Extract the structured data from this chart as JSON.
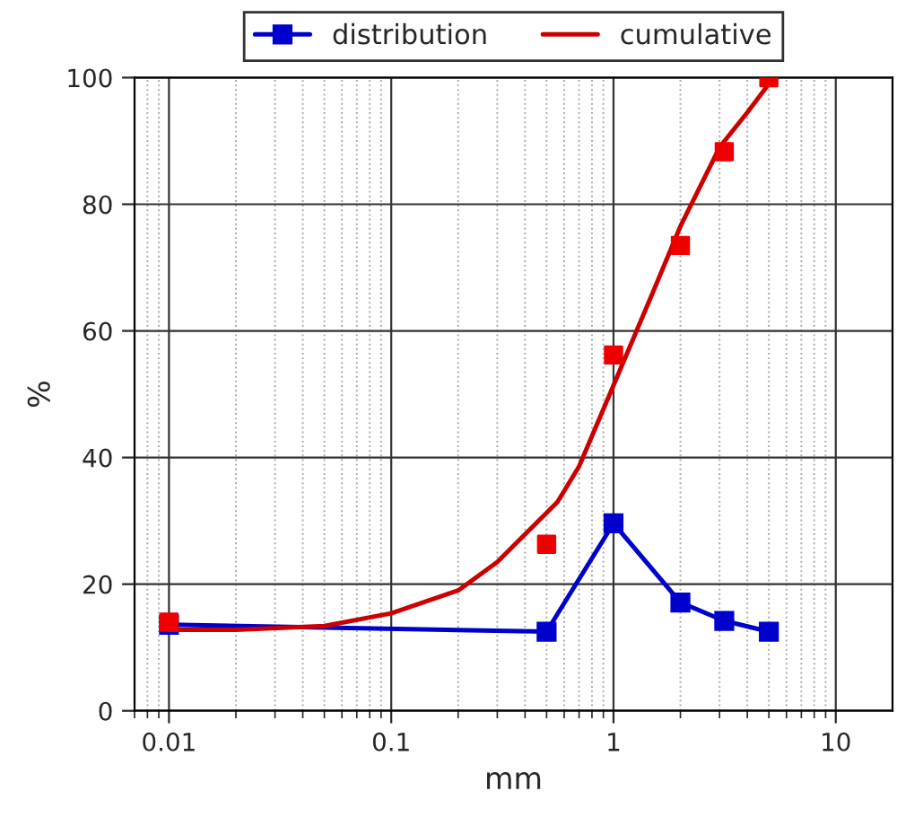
{
  "chart_data": {
    "type": "line",
    "xlabel": "mm",
    "ylabel": "%",
    "log": "x",
    "xlim": [
      0.007,
      18
    ],
    "xticks": [
      0.01,
      0.1,
      1,
      10
    ],
    "ylim": [
      0,
      100
    ],
    "yticks": [
      0,
      20,
      40,
      60,
      80,
      100
    ],
    "grid": true,
    "legend": "top",
    "series": [
      {
        "name": "distribution",
        "color": "#0000cc",
        "marker": "square",
        "x": [
          0.01,
          0.5,
          1,
          2,
          3.15,
          5
        ],
        "values": [
          13.6,
          12.5,
          29.6,
          17.1,
          14.2,
          12.5
        ]
      },
      {
        "name": "cumulative",
        "color": "#cc0000",
        "marker": "none",
        "x": [
          0.01,
          0.02,
          0.05,
          0.1,
          0.2,
          0.3,
          0.56,
          0.7,
          1,
          1.5,
          2,
          3,
          4,
          5
        ],
        "values": [
          12.8,
          12.8,
          13.4,
          15.4,
          19,
          23.5,
          33,
          38.6,
          51.4,
          66,
          76.5,
          89,
          94.5,
          99
        ]
      },
      {
        "type": "scatter",
        "color": "#ee0000",
        "marker": "square",
        "x": [
          0.01,
          0.5,
          1,
          2,
          3.15,
          5
        ],
        "values": [
          14,
          26.3,
          56.2,
          73.5,
          88.3,
          100
        ]
      }
    ]
  }
}
